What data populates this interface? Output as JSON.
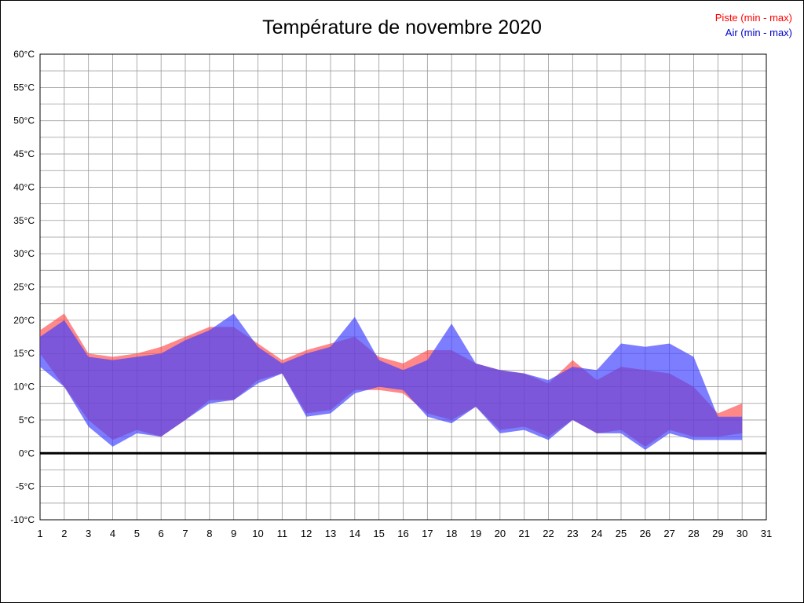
{
  "title": "Température de novembre 2020",
  "legend": {
    "piste_label": "Piste (min - max)",
    "air_label": "Air (min - max)"
  },
  "colors": {
    "piste_text": "#ff0000",
    "air_text": "#0000cc",
    "piste_fill": "#ff4040",
    "air_fill": "#4040ff",
    "grid": "#999999",
    "axis": "#000000",
    "zero_line": "#000000"
  },
  "chart_data": {
    "type": "area",
    "title": "Température de novembre 2020",
    "xlabel": "",
    "ylabel": "",
    "y_unit": "°C",
    "ylim": [
      -10,
      60
    ],
    "ytick_step": 5,
    "grid_minor_step": 2.5,
    "x_axis_ticks": [
      1,
      2,
      3,
      4,
      5,
      6,
      7,
      8,
      9,
      10,
      11,
      12,
      13,
      14,
      15,
      16,
      17,
      18,
      19,
      20,
      21,
      22,
      23,
      24,
      25,
      26,
      27,
      28,
      29,
      30,
      31
    ],
    "x": [
      1,
      2,
      3,
      4,
      5,
      6,
      7,
      8,
      9,
      10,
      11,
      12,
      13,
      14,
      15,
      16,
      17,
      18,
      19,
      20,
      21,
      22,
      23,
      24,
      25,
      26,
      27,
      28,
      29,
      30
    ],
    "series": [
      {
        "name": "Piste (min - max)",
        "min": [
          15,
          10,
          5,
          2,
          3.5,
          2.5,
          5,
          8,
          8,
          11,
          12,
          6,
          6.5,
          9.5,
          9.5,
          9,
          6,
          5,
          7,
          3.5,
          4,
          2.5,
          5,
          3,
          3.5,
          1,
          3.5,
          2.5,
          2.5,
          3
        ],
        "max": [
          18.5,
          21,
          15,
          14.5,
          15,
          16,
          17.5,
          19,
          19,
          16.5,
          14,
          15.5,
          16.5,
          17.5,
          14.5,
          13.5,
          15.5,
          15.5,
          13.5,
          12.5,
          12,
          10.5,
          14,
          11,
          13,
          12.5,
          12,
          10,
          6,
          7.5
        ]
      },
      {
        "name": "Air (min - max)",
        "min": [
          13,
          10,
          4,
          1,
          3,
          2.5,
          5,
          7.5,
          8,
          10.5,
          12,
          5.5,
          6,
          9,
          10,
          9.5,
          5.5,
          4.5,
          7,
          3,
          3.5,
          2,
          5,
          3,
          3,
          0.5,
          3,
          2,
          2,
          2
        ],
        "max": [
          17.5,
          20,
          14.5,
          14,
          14.5,
          15,
          17,
          18.5,
          21,
          16,
          13.5,
          15,
          16,
          20.5,
          14,
          12.5,
          14,
          19.5,
          13.5,
          12.5,
          12,
          11,
          13,
          12.5,
          16.5,
          16,
          16.5,
          14.5,
          5.5,
          5.5
        ]
      }
    ],
    "legend_position": "top-right",
    "grid": true
  }
}
